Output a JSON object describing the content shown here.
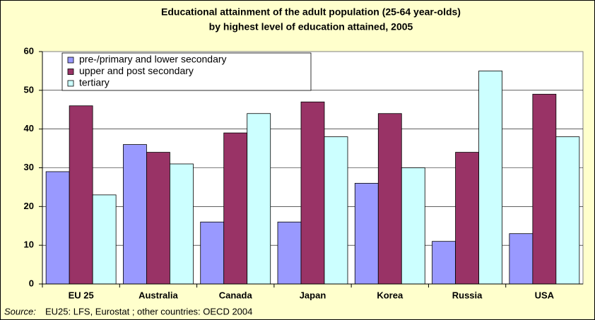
{
  "chart_data": {
    "type": "bar",
    "title": [
      "Educational attainment of the adult population (25-64 year-olds)",
      "by highest level of education attained, 2005"
    ],
    "categories": [
      "EU 25",
      "Australia",
      "Canada",
      "Japan",
      "Korea",
      "Russia",
      "USA"
    ],
    "series": [
      {
        "name": "pre-/primary and lower secondary",
        "color": "#9999ff",
        "values": [
          29,
          36,
          16,
          16,
          26,
          11,
          13
        ]
      },
      {
        "name": "upper and post secondary",
        "color": "#993366",
        "values": [
          46,
          34,
          39,
          47,
          44,
          34,
          49
        ]
      },
      {
        "name": "tertiary",
        "color": "#ccffff",
        "values": [
          23,
          31,
          44,
          38,
          30,
          55,
          38
        ]
      }
    ],
    "ylim": [
      0,
      60
    ],
    "yticks": [
      0,
      10,
      20,
      30,
      40,
      50,
      60
    ],
    "grid": true,
    "legend": "top-left",
    "source_label": "Source:",
    "source": "EU25: LFS, Eurostat ; other countries: OECD 2004"
  }
}
